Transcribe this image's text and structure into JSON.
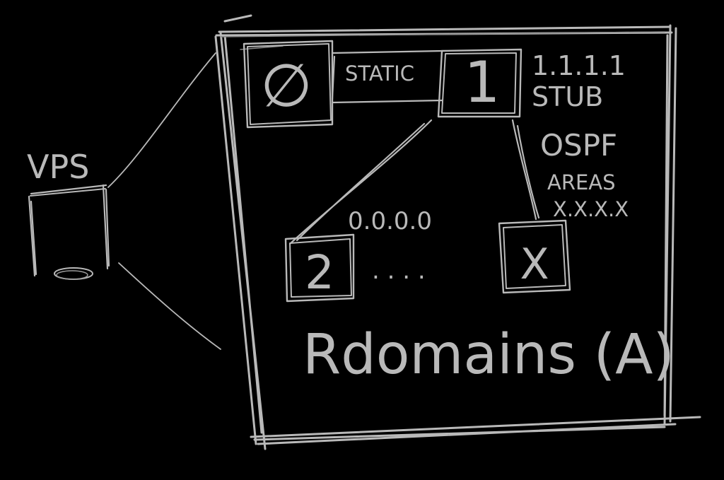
{
  "colors": {
    "background": "#000000",
    "chalk": "#b9b9b9",
    "chalk_faint": "#8a8a8a"
  },
  "labels": {
    "vps": "VPS",
    "static": "STATIC",
    "stub_ip": "1.1.1.1",
    "stub": "STUB",
    "ospf": "OSPF",
    "areas": "AREAS",
    "area_pattern": "X.X.X.X",
    "backbone_area": "0.0.0.0",
    "ellipsis": ". . . .",
    "rdomains": "Rdomains (A)"
  },
  "domains": {
    "d0": "∅",
    "d1": "1",
    "d2": "2",
    "dx": "X"
  }
}
